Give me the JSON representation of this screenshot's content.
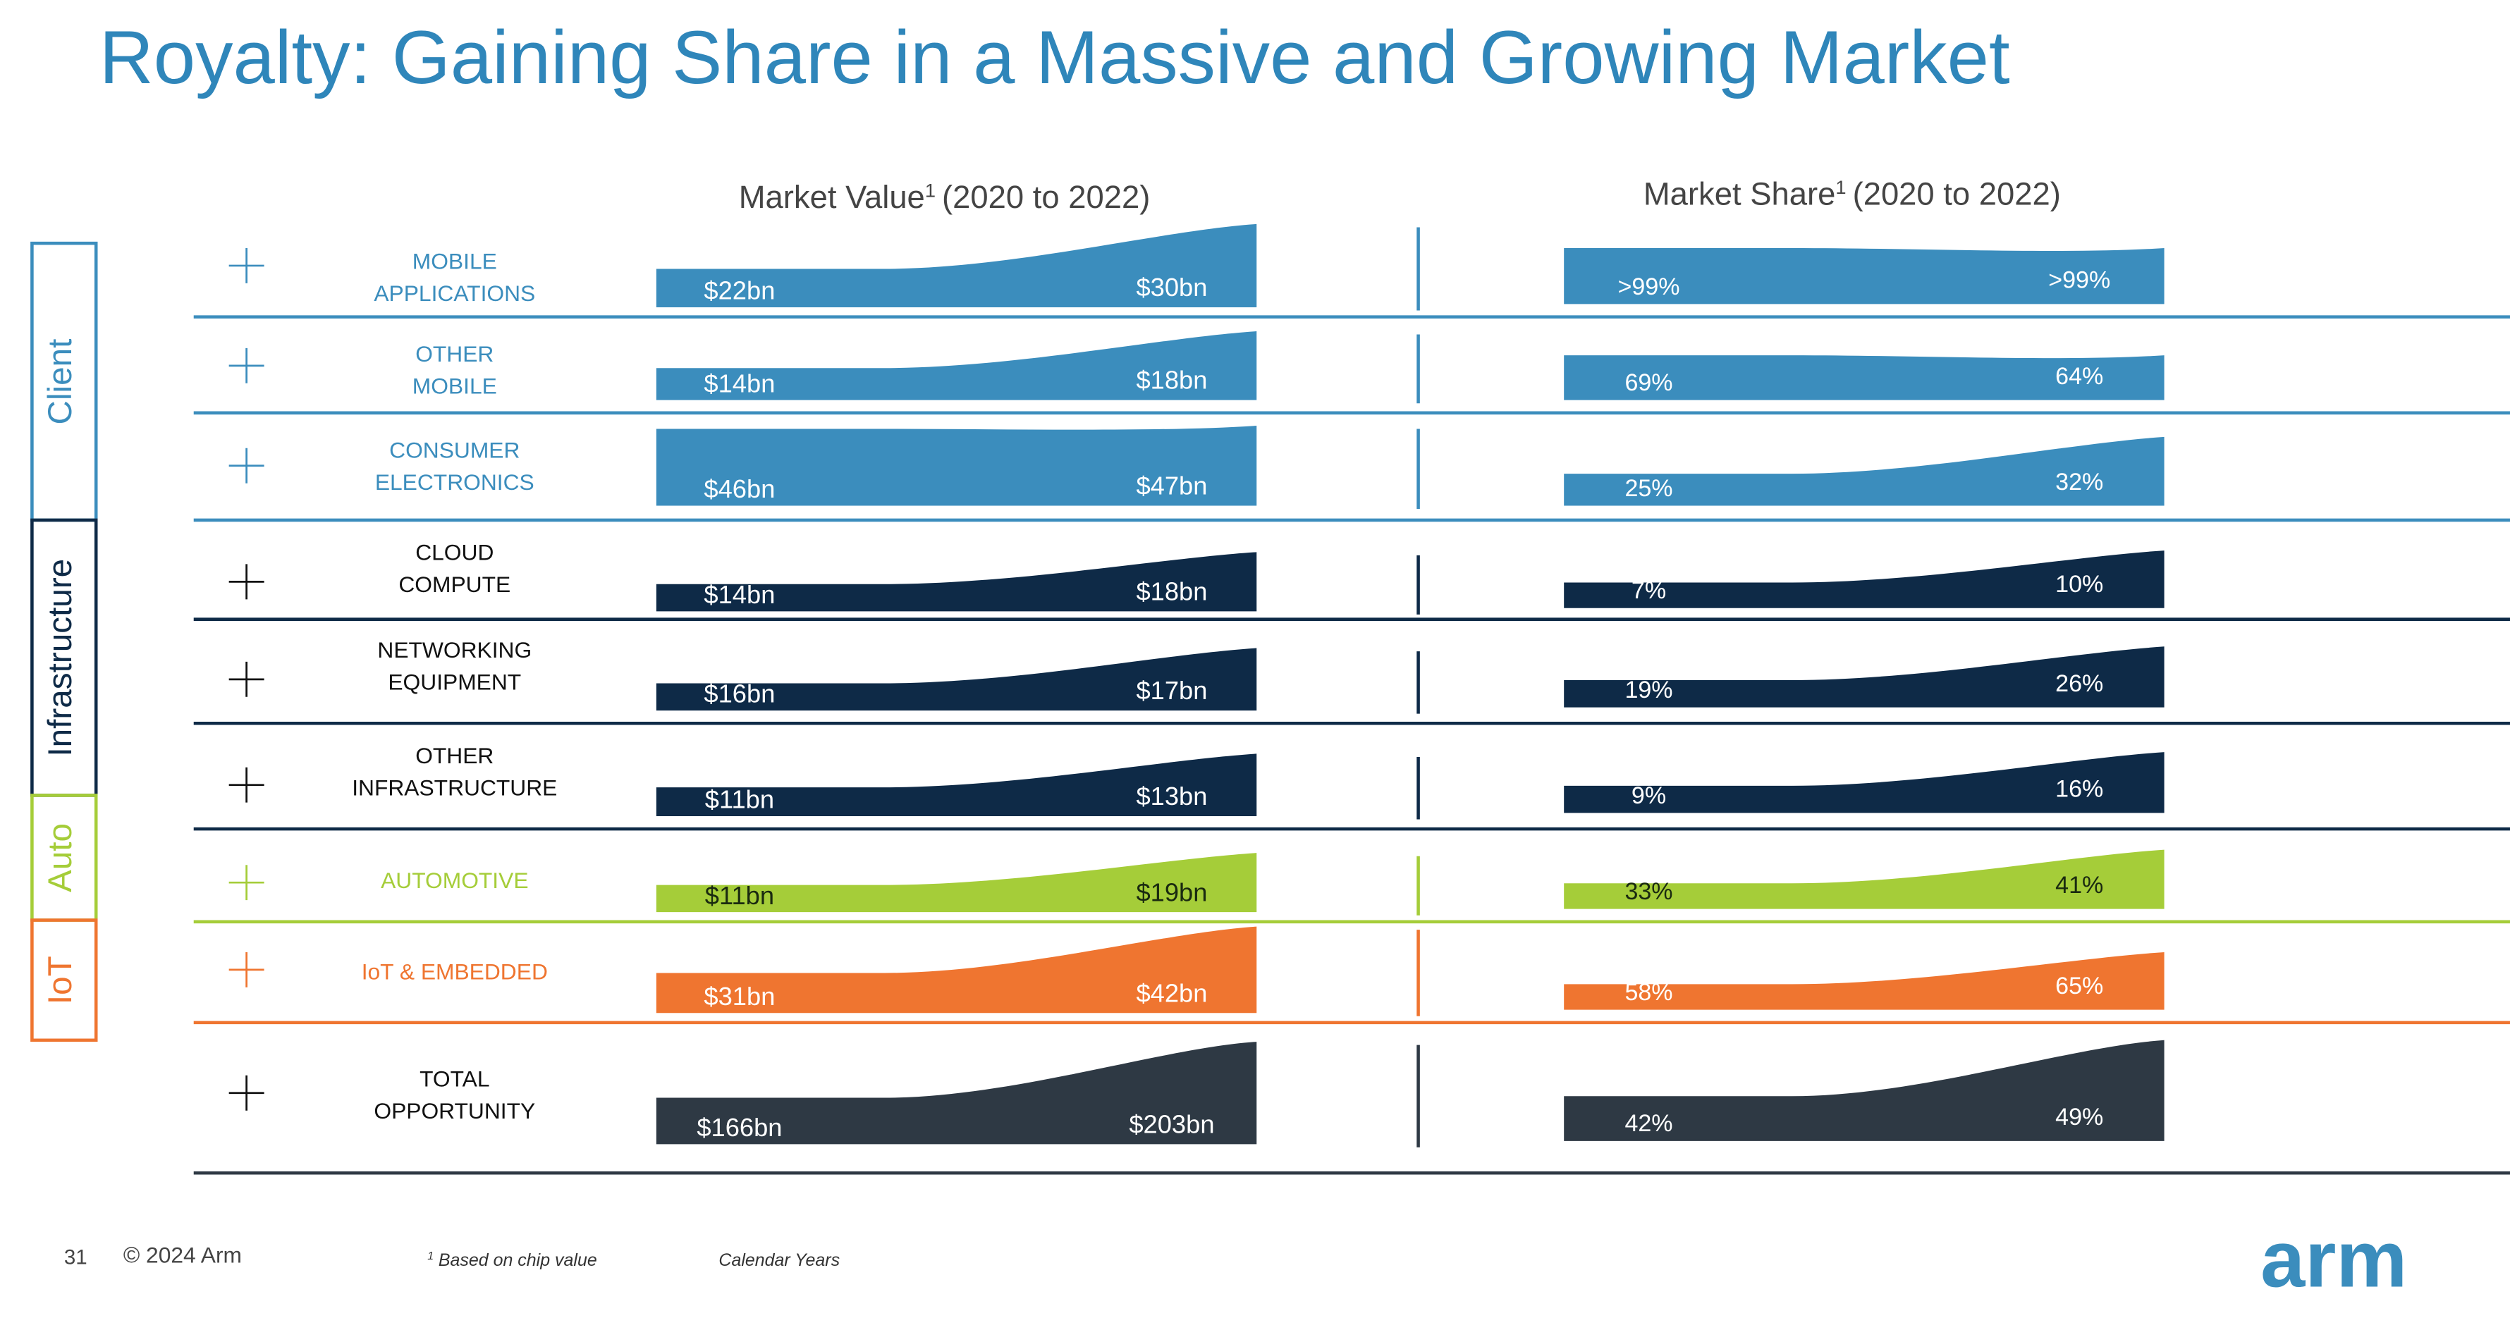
{
  "header": {
    "title": "Royalty: Gaining Share in a Massive and Growing Market"
  },
  "columns": {
    "value": {
      "title": "Market Value",
      "note": "1",
      "period": "(2020 to 2022)"
    },
    "share": {
      "title": "Market Share",
      "note": "1",
      "period": "(2020 to 2022)"
    }
  },
  "segments": [
    {
      "label": "Client",
      "color": "#3b8dbd"
    },
    {
      "label": "Infrastructure",
      "color": "#0e2a47"
    },
    {
      "label": "Auto",
      "color": "#a5cd39"
    },
    {
      "label": "IoT",
      "color": "#ef7530"
    }
  ],
  "rows": [
    {
      "label": [
        "MOBILE",
        "APPLICATIONS"
      ],
      "color": "#3b8dbd",
      "value": [
        "$22bn",
        "$30bn"
      ],
      "share": [
        ">99%",
        ">99%"
      ]
    },
    {
      "label": [
        "OTHER",
        "MOBILE"
      ],
      "color": "#3b8dbd",
      "value": [
        "$14bn",
        "$18bn"
      ],
      "share": [
        "69%",
        "64%"
      ]
    },
    {
      "label": [
        "CONSUMER",
        "ELECTRONICS"
      ],
      "color": "#3b8dbd",
      "value": [
        "$46bn",
        "$47bn"
      ],
      "share": [
        "25%",
        "32%"
      ]
    },
    {
      "label": [
        "CLOUD",
        "COMPUTE"
      ],
      "color": "#0e2a47",
      "value": [
        "$14bn",
        "$18bn"
      ],
      "share": [
        "7%",
        "10%"
      ]
    },
    {
      "label": [
        "NETWORKING",
        "EQUIPMENT"
      ],
      "color": "#0e2a47",
      "value": [
        "$16bn",
        "$17bn"
      ],
      "share": [
        "19%",
        "26%"
      ]
    },
    {
      "label": [
        "OTHER",
        "INFRASTRUCTURE"
      ],
      "color": "#0e2a47",
      "value": [
        "$11bn",
        "$13bn"
      ],
      "share": [
        "9%",
        "16%"
      ]
    },
    {
      "label": [
        "AUTOMOTIVE"
      ],
      "color": "#a5cd39",
      "value": [
        "$11bn",
        "$19bn"
      ],
      "share": [
        "33%",
        "41%"
      ]
    },
    {
      "label": [
        "IoT & EMBEDDED"
      ],
      "color": "#ef7530",
      "value": [
        "$31bn",
        "$42bn"
      ],
      "share": [
        "58%",
        "65%"
      ]
    },
    {
      "label": [
        "TOTAL",
        "OPPORTUNITY"
      ],
      "color": "#2e3944",
      "value": [
        "$166bn",
        "$203bn"
      ],
      "share": [
        "42%",
        "49%"
      ]
    }
  ],
  "footer": {
    "page": "31",
    "copyright": "© 2024 Arm",
    "note_mark": "1",
    "note": "Based on chip value",
    "period": "Calendar Years",
    "logo": "arm"
  }
}
